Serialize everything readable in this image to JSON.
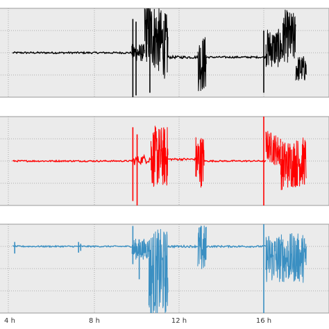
{
  "chart_data": [
    {
      "type": "line",
      "panel": "top",
      "color": "#000000",
      "x_unit": "h",
      "xlim": [
        4.2,
        18.0
      ],
      "ylim": [
        0,
        1
      ],
      "grid": true,
      "segments": [
        {
          "x": [
            4.2,
            9.8
          ],
          "y": [
            0.5,
            0.5
          ],
          "noise": 0.01
        },
        {
          "x": [
            9.8,
            10.4
          ],
          "y": [
            0.5,
            0.5
          ],
          "noise": 0.1
        },
        {
          "x": [
            10.4,
            11.5
          ],
          "y": [
            0.78,
            0.55
          ],
          "noise": 0.38
        },
        {
          "x": [
            11.5,
            12.9
          ],
          "y": [
            0.45,
            0.45
          ],
          "noise": 0.015
        },
        {
          "x": [
            12.9,
            13.3
          ],
          "y": [
            0.38,
            0.38
          ],
          "noise": 0.32
        },
        {
          "x": [
            13.3,
            16.1
          ],
          "y": [
            0.45,
            0.45
          ],
          "noise": 0.01
        },
        {
          "x": [
            16.1,
            16.9
          ],
          "y": [
            0.55,
            0.55
          ],
          "noise": 0.22
        },
        {
          "x": [
            16.9,
            17.5
          ],
          "y": [
            0.7,
            0.65
          ],
          "noise": 0.3
        },
        {
          "x": [
            17.5,
            18.0
          ],
          "y": [
            0.32,
            0.32
          ],
          "noise": 0.15
        }
      ],
      "spikes": [
        {
          "x": 9.85,
          "y": [
            0.0,
            0.88
          ]
        },
        {
          "x": 10.0,
          "y": [
            0.02,
            0.85
          ]
        },
        {
          "x": 10.65,
          "y": [
            0.05,
            0.9
          ]
        },
        {
          "x": 16.0,
          "y": [
            0.05,
            0.75
          ]
        }
      ]
    },
    {
      "type": "line",
      "panel": "middle",
      "color": "#ff0000",
      "x_unit": "h",
      "xlim": [
        4.2,
        18.0
      ],
      "ylim": [
        0,
        1
      ],
      "grid": true,
      "segments": [
        {
          "x": [
            4.2,
            9.8
          ],
          "y": [
            0.5,
            0.5
          ],
          "noise": 0.008
        },
        {
          "x": [
            9.8,
            10.7
          ],
          "y": [
            0.5,
            0.53
          ],
          "noise": 0.05
        },
        {
          "x": [
            10.7,
            11.5
          ],
          "y": [
            0.55,
            0.55
          ],
          "noise": 0.35
        },
        {
          "x": [
            11.5,
            12.8
          ],
          "y": [
            0.52,
            0.52
          ],
          "noise": 0.012
        },
        {
          "x": [
            12.8,
            13.2
          ],
          "y": [
            0.5,
            0.5
          ],
          "noise": 0.3
        },
        {
          "x": [
            13.2,
            16.1
          ],
          "y": [
            0.5,
            0.5
          ],
          "noise": 0.008
        },
        {
          "x": [
            16.1,
            16.8
          ],
          "y": [
            0.68,
            0.6
          ],
          "noise": 0.18
        },
        {
          "x": [
            16.8,
            18.0
          ],
          "y": [
            0.45,
            0.5
          ],
          "noise": 0.28
        }
      ],
      "spikes": [
        {
          "x": 9.85,
          "y": [
            0.05,
            0.88
          ]
        },
        {
          "x": 10.05,
          "y": [
            0.0,
            0.8
          ]
        },
        {
          "x": 16.0,
          "y": [
            0.0,
            1.0
          ]
        }
      ]
    },
    {
      "type": "line",
      "panel": "bottom",
      "color": "#3a8fc2",
      "x_unit": "h",
      "xlim": [
        4.2,
        18.0
      ],
      "xticks": [
        4,
        8,
        12,
        16
      ],
      "xticklabels": [
        "4 h",
        "8 h",
        "12 h",
        "16 h"
      ],
      "ylim": [
        0,
        1
      ],
      "grid": true,
      "segments": [
        {
          "x": [
            4.2,
            9.8
          ],
          "y": [
            0.75,
            0.75
          ],
          "noise": 0.008
        },
        {
          "x": [
            9.8,
            10.6
          ],
          "y": [
            0.72,
            0.72
          ],
          "noise": 0.12
        },
        {
          "x": [
            10.6,
            11.5
          ],
          "y": [
            0.45,
            0.45
          ],
          "noise": 0.5
        },
        {
          "x": [
            11.5,
            12.9
          ],
          "y": [
            0.75,
            0.75
          ],
          "noise": 0.012
        },
        {
          "x": [
            12.9,
            13.3
          ],
          "y": [
            0.72,
            0.72
          ],
          "noise": 0.28
        },
        {
          "x": [
            13.3,
            16.1
          ],
          "y": [
            0.75,
            0.75
          ],
          "noise": 0.01
        },
        {
          "x": [
            16.1,
            18.0
          ],
          "y": [
            0.62,
            0.62
          ],
          "noise": 0.28
        }
      ],
      "spikes": [
        {
          "x": 4.3,
          "y": [
            0.67,
            0.8
          ]
        },
        {
          "x": 7.3,
          "y": [
            0.68,
            0.8
          ]
        },
        {
          "x": 7.4,
          "y": [
            0.7,
            0.78
          ]
        },
        {
          "x": 9.85,
          "y": [
            0.55,
            0.98
          ]
        },
        {
          "x": 10.15,
          "y": [
            0.38,
            0.8
          ]
        },
        {
          "x": 16.0,
          "y": [
            0.0,
            1.0
          ]
        }
      ]
    }
  ],
  "bottom_axis": {
    "ticks": [
      {
        "label": "4 h"
      },
      {
        "label": "8 h"
      },
      {
        "label": "12 h"
      },
      {
        "label": "16 h"
      }
    ]
  }
}
